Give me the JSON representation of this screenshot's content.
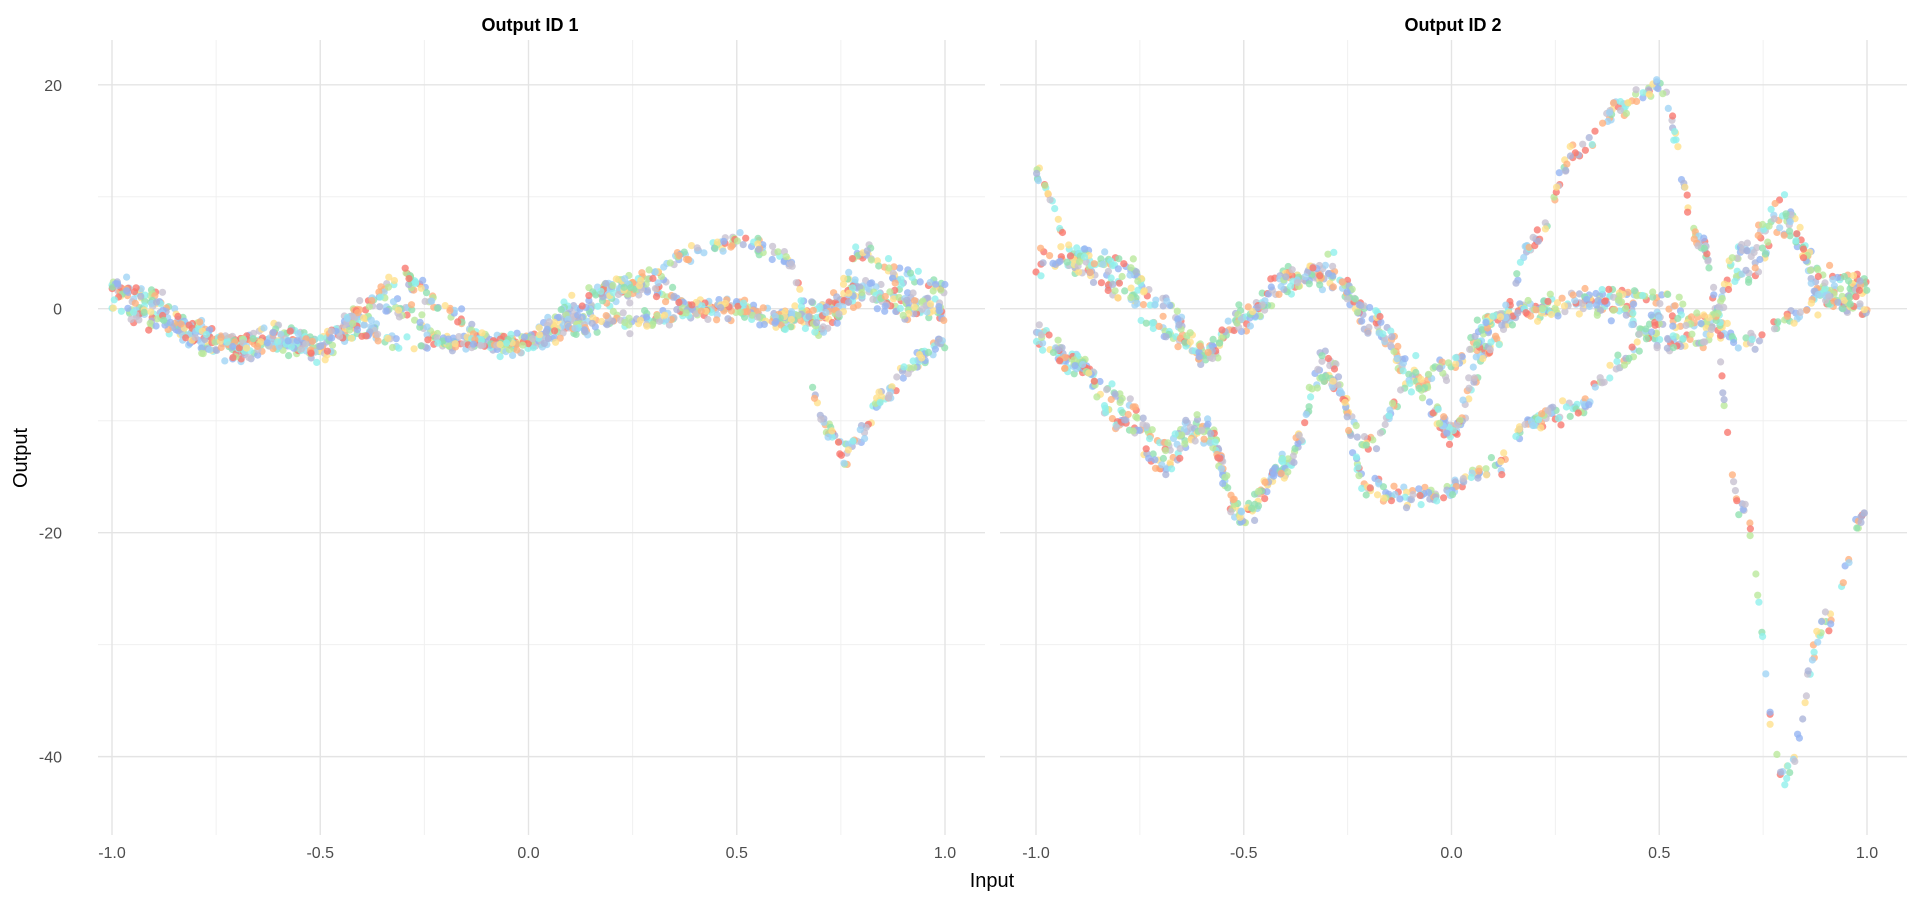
{
  "chart_data": {
    "type": "scatter",
    "xlabel": "Input",
    "ylabel": "Output",
    "xlim": [
      -1.05,
      1.05
    ],
    "ylim": [
      -47,
      24
    ],
    "x_ticks": [
      -1.0,
      -0.5,
      0.0,
      0.5,
      1.0
    ],
    "x_tick_labels": [
      "-1.0",
      "-0.5",
      "0.0",
      "0.5",
      "1.0"
    ],
    "y_ticks": [
      -40,
      -20,
      0,
      20
    ],
    "y_tick_labels": [
      "-40",
      "-20",
      "0",
      "20"
    ],
    "grid": true,
    "legend": "none",
    "colors": [
      "#f8766d",
      "#ffb07c",
      "#ffe08a",
      "#b9e89a",
      "#8fe0b0",
      "#8ef0ec",
      "#9fd3f5",
      "#93b4f2",
      "#aab4d8",
      "#c7c0d0"
    ],
    "facets": [
      {
        "title": "Output ID 1",
        "curves": [
          {
            "x": [
              -1.0,
              -0.9,
              -0.8,
              -0.7,
              -0.6,
              -0.5,
              -0.4,
              -0.3,
              -0.2,
              -0.1,
              0.0,
              0.1,
              0.2,
              0.3,
              0.4,
              0.5,
              0.6,
              0.7,
              0.8,
              0.9,
              1.0
            ],
            "y": [
              2,
              1,
              -3,
              -4,
              -3,
              -4,
              -1,
              0,
              -3,
              -3,
              -3,
              -1,
              1,
              2,
              0,
              0,
              -1,
              0,
              2,
              1,
              0
            ]
          },
          {
            "x": [
              -1.0,
              -0.9,
              -0.8,
              -0.7,
              -0.6,
              -0.5,
              -0.4,
              -0.3,
              -0.2,
              -0.1,
              0.0,
              0.1,
              0.2,
              0.3,
              0.4,
              0.5,
              0.6,
              0.7,
              0.8,
              0.9,
              1.0
            ],
            "y": [
              2,
              0,
              -2,
              -3,
              -2,
              -3,
              0,
              3,
              0,
              -3,
              -3,
              0,
              2,
              3,
              5,
              6,
              5,
              -2,
              5,
              3,
              2
            ]
          },
          {
            "x": [
              -1.0,
              -0.9,
              -0.8,
              -0.7,
              -0.6,
              -0.5,
              -0.4,
              -0.3,
              -0.2,
              -0.1,
              0.0,
              0.1,
              0.2,
              0.3,
              0.4,
              0.5,
              0.6,
              0.7,
              0.8,
              0.9,
              1.0
            ],
            "y": [
              0,
              -1,
              -2,
              -3,
              -3,
              -4,
              -2,
              -3,
              -3,
              -3,
              -3,
              -2,
              -1,
              -1,
              0,
              0,
              -1,
              -1,
              1,
              0,
              0
            ]
          },
          {
            "x": [
              0.68,
              0.72,
              0.76,
              0.8,
              0.85,
              0.9,
              0.95,
              1.0
            ],
            "y": [
              -7,
              -11,
              -13,
              -11,
              -8,
              -6,
              -4,
              -3
            ]
          }
        ]
      },
      {
        "title": "Output ID 2",
        "curves": [
          {
            "x": [
              -1.0,
              -0.9,
              -0.8,
              -0.7,
              -0.6,
              -0.5,
              -0.4,
              -0.3,
              -0.2,
              -0.1,
              0.0,
              0.1,
              0.2,
              0.3,
              0.4,
              0.5,
              0.6,
              0.7,
              0.8,
              0.9,
              1.0
            ],
            "y": [
              12,
              4,
              2,
              -2,
              -4,
              -1,
              3,
              3,
              -1,
              -6,
              -11,
              -3,
              6,
              14,
              18,
              20,
              6,
              -18,
              -42,
              -28,
              -18
            ]
          },
          {
            "x": [
              -1.0,
              -0.9,
              -0.8,
              -0.7,
              -0.6,
              -0.5,
              -0.4,
              -0.3,
              -0.2,
              -0.1,
              0.0,
              0.1,
              0.2,
              0.3,
              0.4,
              0.5,
              0.6,
              0.7,
              0.8,
              0.9,
              1.0
            ],
            "y": [
              4,
              5,
              4,
              1,
              -4,
              -1,
              2,
              4,
              0,
              -5,
              -11,
              -1,
              0,
              0,
              0,
              -3,
              -3,
              5,
              9,
              1,
              0
            ]
          },
          {
            "x": [
              -1.0,
              -0.9,
              -0.8,
              -0.7,
              -0.6,
              -0.5,
              -0.4,
              -0.3,
              -0.2,
              -0.1,
              0.0,
              0.1,
              0.2,
              0.3,
              0.4,
              0.5,
              0.6,
              0.7,
              0.8,
              0.9,
              1.0
            ],
            "y": [
              -3,
              -5,
              -8,
              -12,
              -10,
              -19,
              -14,
              -6,
              -12,
              -7,
              -5,
              -1,
              0,
              1,
              1,
              1,
              -1,
              -3,
              -1,
              1,
              2
            ]
          },
          {
            "x": [
              -1.0,
              -0.9,
              -0.8,
              -0.7,
              -0.6,
              -0.5,
              -0.4,
              -0.3,
              -0.2,
              -0.1,
              0.0,
              0.1,
              0.2,
              0.3,
              0.4,
              0.5,
              0.6,
              0.7,
              0.8,
              0.9,
              1.0
            ],
            "y": [
              -2,
              -5,
              -10,
              -14,
              -11,
              -18,
              -14,
              -4,
              -16,
              -17,
              -16,
              -14,
              -10,
              -9,
              -5,
              -1,
              -2,
              3,
              7,
              3,
              2
            ]
          }
        ]
      }
    ]
  }
}
